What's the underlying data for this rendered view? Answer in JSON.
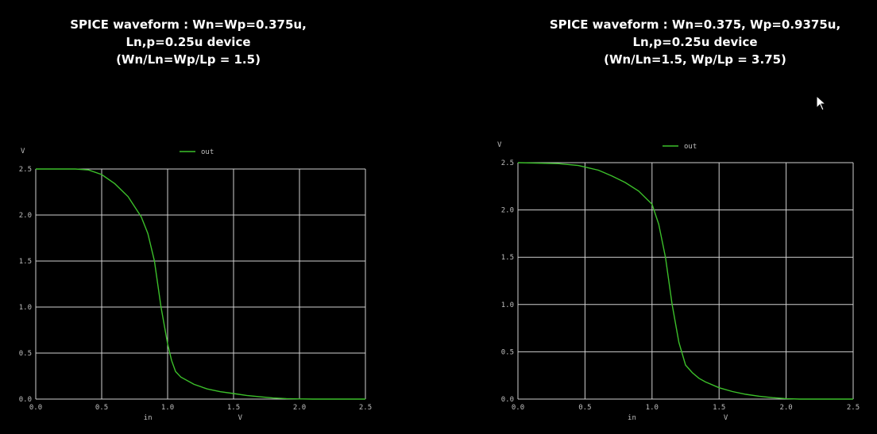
{
  "titles": {
    "left": [
      "SPICE waveform : Wn=Wp=0.375u,",
      "Ln,p=0.25u device",
      "(Wn/Ln=Wp/Lp = 1.5)"
    ],
    "right": [
      "SPICE waveform : Wn=0.375, Wp=0.9375u,",
      "Ln,p=0.25u device",
      "(Wn/Ln=1.5, Wp/Lp = 3.75)"
    ]
  },
  "colors": {
    "background": "#000000",
    "grid": "#d0d0d0",
    "curve": "#3cbf2a",
    "text": "#bfbfbf"
  },
  "chart_data": [
    {
      "type": "line",
      "title": "",
      "xlabel": "in",
      "xunit": "V",
      "yunit": "V",
      "xlim": [
        0.0,
        2.5
      ],
      "ylim": [
        0.0,
        2.5
      ],
      "xticks": [
        "0.0",
        "0.5",
        "1.0",
        "1.5",
        "2.0",
        "2.5"
      ],
      "yticks": [
        "0.0",
        "0.5",
        "1.0",
        "1.5",
        "2.0",
        "2.5"
      ],
      "grid": true,
      "legend_position": "top-center",
      "series": [
        {
          "name": "out",
          "x": [
            0.0,
            0.3,
            0.4,
            0.5,
            0.6,
            0.7,
            0.8,
            0.85,
            0.9,
            0.95,
            1.0,
            1.03,
            1.06,
            1.1,
            1.2,
            1.3,
            1.4,
            1.5,
            1.6,
            1.7,
            1.8,
            1.9,
            2.0,
            2.1,
            2.5
          ],
          "y": [
            2.5,
            2.5,
            2.49,
            2.44,
            2.34,
            2.2,
            1.98,
            1.8,
            1.5,
            1.0,
            0.6,
            0.42,
            0.3,
            0.24,
            0.16,
            0.11,
            0.08,
            0.06,
            0.04,
            0.025,
            0.012,
            0.005,
            0.002,
            0.0,
            0.0
          ]
        }
      ]
    },
    {
      "type": "line",
      "title": "",
      "xlabel": "in",
      "xunit": "V",
      "yunit": "V",
      "xlim": [
        0.0,
        2.5
      ],
      "ylim": [
        0.0,
        2.5
      ],
      "xticks": [
        "0.0",
        "0.5",
        "1.0",
        "1.5",
        "2.0",
        "2.5"
      ],
      "yticks": [
        "0.0",
        "0.5",
        "1.0",
        "1.5",
        "2.0",
        "2.5"
      ],
      "grid": true,
      "legend_position": "top-center",
      "series": [
        {
          "name": "out",
          "x": [
            0.0,
            0.3,
            0.45,
            0.6,
            0.7,
            0.8,
            0.9,
            1.0,
            1.05,
            1.1,
            1.15,
            1.2,
            1.25,
            1.3,
            1.35,
            1.4,
            1.5,
            1.6,
            1.7,
            1.8,
            1.9,
            2.0,
            2.1,
            2.5
          ],
          "y": [
            2.5,
            2.49,
            2.47,
            2.42,
            2.36,
            2.29,
            2.2,
            2.06,
            1.85,
            1.5,
            1.0,
            0.6,
            0.36,
            0.28,
            0.22,
            0.18,
            0.12,
            0.08,
            0.05,
            0.03,
            0.015,
            0.005,
            0.0,
            0.0
          ]
        }
      ]
    }
  ]
}
